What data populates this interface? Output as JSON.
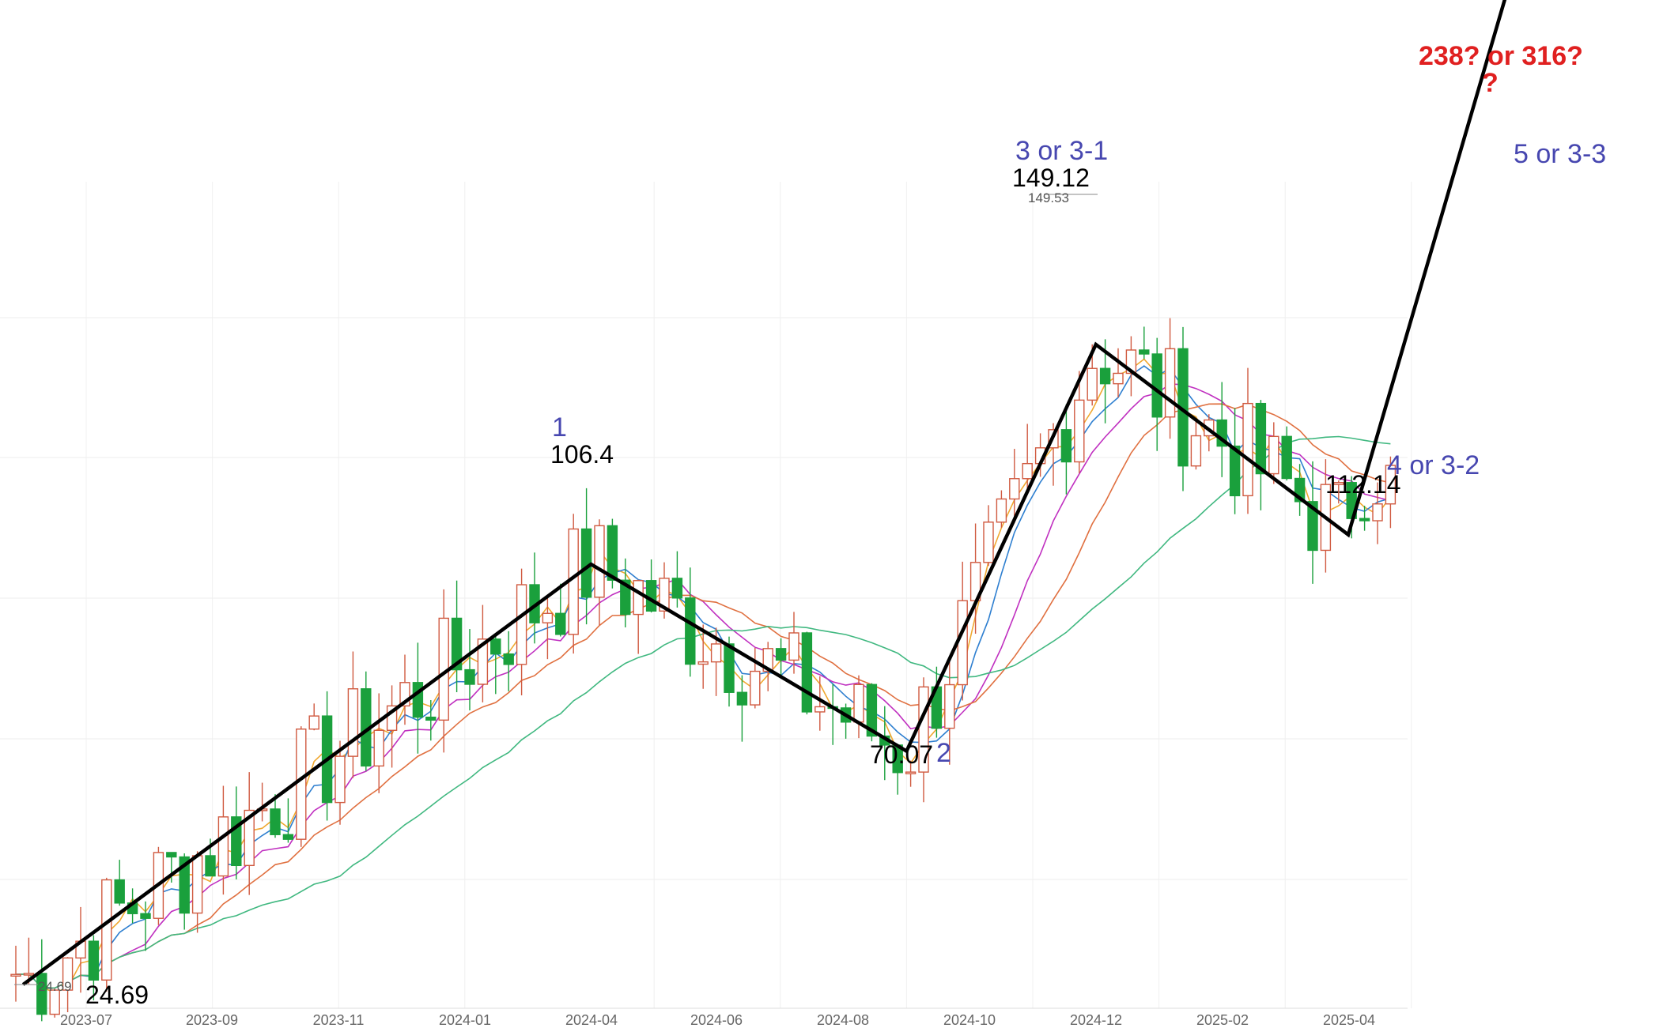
{
  "chart_data": {
    "type": "candlestick",
    "x_ticks": [
      "2023-07",
      "2023-09",
      "2023-11",
      "2024-01",
      "2024-04",
      "2024-06",
      "2024-08",
      "2024-10",
      "2024-12",
      "2025-02",
      "2025-04"
    ],
    "moving_average_colors": {
      "ma5": "#f0a830",
      "ma10": "#2e7fd0",
      "ma20": "#c030c0",
      "ma30": "#e07040",
      "ma60": "#40b880"
    },
    "candle_colors": {
      "up": "#d05a40",
      "down": "#1aa03c"
    },
    "wave_path": [
      {
        "date": "2023-06",
        "price": 24.69
      },
      {
        "date": "2024-03",
        "price": 106.4
      },
      {
        "date": "2024-08",
        "price": 70.07
      },
      {
        "date": "2024-11",
        "price": 149.12
      },
      {
        "date": "2025-03",
        "price": 112.14
      },
      {
        "date": "2025-06",
        "price": 238
      }
    ],
    "price_labels": [
      {
        "text": "24.69"
      },
      {
        "text": "106.4"
      },
      {
        "text": "70.07"
      },
      {
        "text": "149.12"
      },
      {
        "text": "112.14"
      }
    ],
    "small_price_labels": [
      {
        "text": "24.69"
      },
      {
        "text": "149.53"
      }
    ],
    "wave_labels": [
      {
        "text": "1"
      },
      {
        "text": "2"
      },
      {
        "text": "3 or 3-1"
      },
      {
        "text": "4 or 3-2"
      },
      {
        "text": "5 or 3-3"
      }
    ],
    "target_label": "238? or 316?",
    "target_question": "?"
  }
}
